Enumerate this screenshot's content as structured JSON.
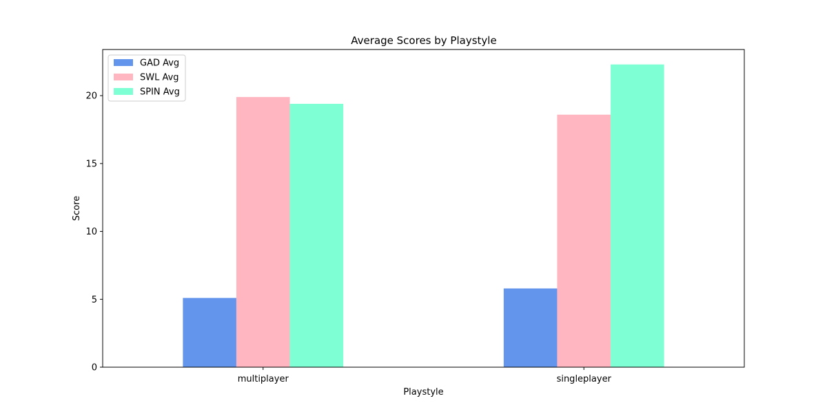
{
  "chart_data": {
    "type": "bar",
    "title": "Average Scores by Playstyle",
    "xlabel": "Playstyle",
    "ylabel": "Score",
    "categories": [
      "multiplayer",
      "singleplayer"
    ],
    "series": [
      {
        "name": "GAD Avg",
        "color": "#6495ed",
        "values": [
          5.1,
          5.8
        ]
      },
      {
        "name": "SWL Avg",
        "color": "#ffb6c1",
        "values": [
          19.9,
          18.6
        ]
      },
      {
        "name": "SPIN Avg",
        "color": "#7fffd4",
        "values": [
          19.4,
          22.3
        ]
      }
    ],
    "ylim": [
      0,
      23.4
    ],
    "yticks": [
      0,
      5,
      10,
      15,
      20
    ],
    "grid": false,
    "legend_position": "top-left"
  }
}
